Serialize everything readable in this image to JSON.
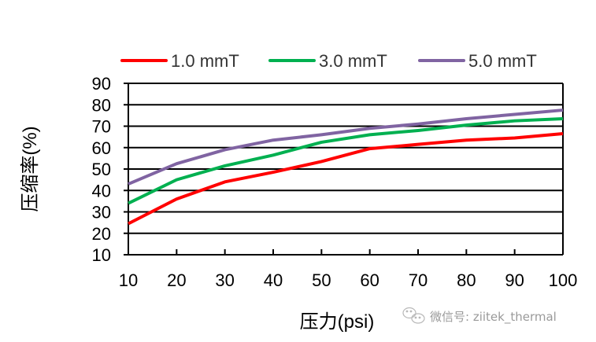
{
  "chart_data": {
    "type": "line",
    "title": "",
    "xlabel": "压力(psi)",
    "ylabel": "压缩率(%)",
    "x": [
      10,
      20,
      30,
      40,
      50,
      60,
      70,
      80,
      90,
      100
    ],
    "xlim": [
      10,
      100
    ],
    "ylim": [
      10,
      90
    ],
    "xticks": [
      10,
      20,
      30,
      40,
      50,
      60,
      70,
      80,
      90,
      100
    ],
    "yticks": [
      10,
      20,
      30,
      40,
      50,
      60,
      70,
      80,
      90
    ],
    "grid": "horizontal",
    "legend_position": "top",
    "series": [
      {
        "name": "1.0 mmT",
        "color": "#ff0000",
        "values": [
          24.5,
          36,
          44,
          48.5,
          53.5,
          59.5,
          61.5,
          63.5,
          64.5,
          66.5
        ]
      },
      {
        "name": "3.0 mmT",
        "color": "#00b050",
        "values": [
          34,
          45,
          51.5,
          56.5,
          62.5,
          66,
          68,
          70.5,
          72.5,
          73.5
        ]
      },
      {
        "name": "5.0 mmT",
        "color": "#8064a2",
        "values": [
          43,
          52.5,
          59,
          63.5,
          66,
          69,
          71,
          73.5,
          75.5,
          77.5
        ]
      }
    ]
  },
  "watermark": {
    "icon": "wechat-icon",
    "text": "微信号: ziitek_thermal"
  }
}
